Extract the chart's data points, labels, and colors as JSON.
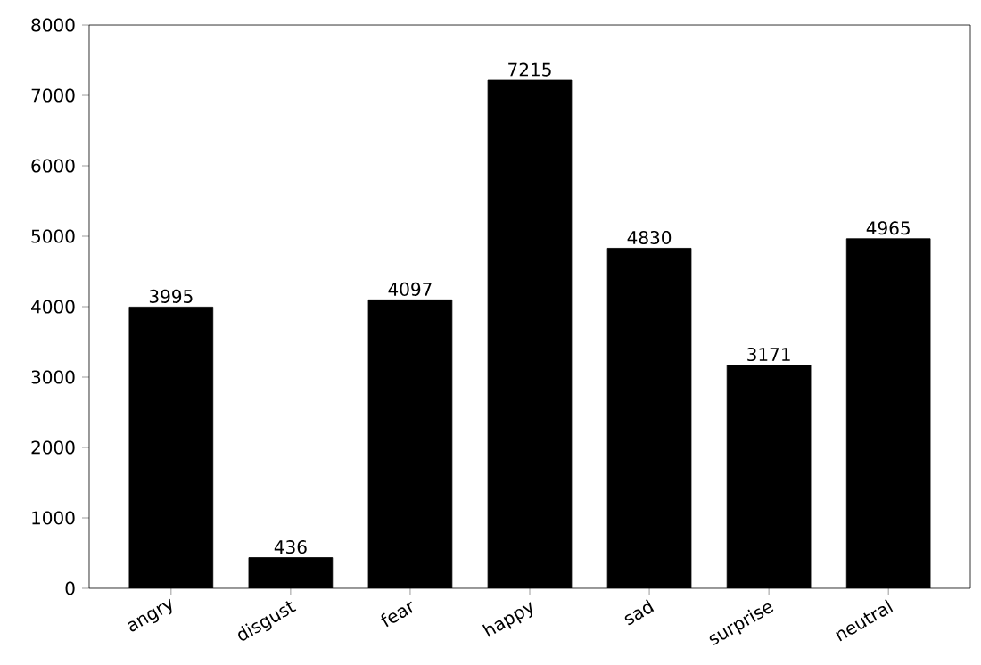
{
  "chart_data": {
    "type": "bar",
    "categories": [
      "angry",
      "disgust",
      "fear",
      "happy",
      "sad",
      "surprise",
      "neutral"
    ],
    "values": [
      3995,
      436,
      4097,
      7215,
      4830,
      3171,
      4965
    ],
    "color": "#000000",
    "ylim": [
      0,
      8000
    ],
    "yticks": [
      0,
      1000,
      2000,
      3000,
      4000,
      5000,
      6000,
      7000,
      8000
    ],
    "data_labels": true,
    "grid": false
  }
}
